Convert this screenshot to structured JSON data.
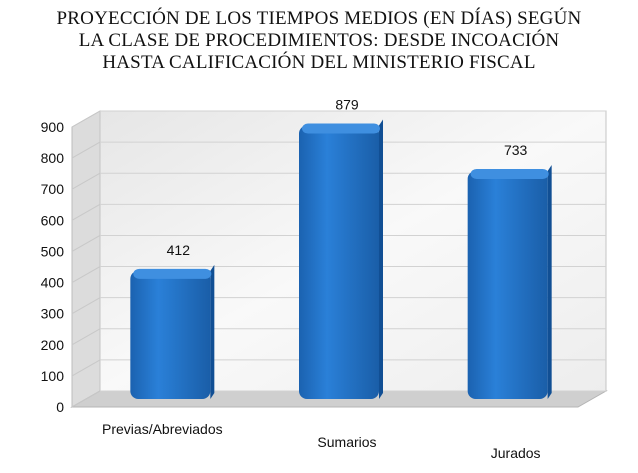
{
  "chart_data": {
    "type": "bar",
    "title_lines": [
      "PROYECCIÓN DE LOS TIEMPOS MEDIOS (EN DÍAS) SEGÚN",
      "LA CLASE DE PROCEDIMIENTOS: DESDE INCOACIÓN",
      "HASTA CALIFICACIÓN DEL MINISTERIO FISCAL"
    ],
    "categories": [
      "Previas/Abreviados",
      "Sumarios",
      "Jurados"
    ],
    "values": [
      412,
      879,
      733
    ],
    "data_labels": [
      "412",
      "879",
      "733"
    ],
    "yticks": [
      "0",
      "100",
      "200",
      "300",
      "400",
      "500",
      "600",
      "700",
      "800",
      "900"
    ],
    "ylim": [
      0,
      900
    ],
    "xlabel": "",
    "ylabel": "",
    "grid": true,
    "colors": {
      "bar": "#1f6fc4",
      "bar_top": "#3f8fe0",
      "bar_side": "#114f94",
      "wall": "#f2f2f2",
      "floor": "#cfcfcf"
    }
  }
}
